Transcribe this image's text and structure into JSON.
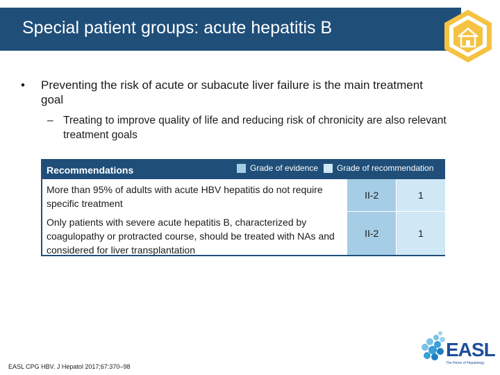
{
  "title": "Special patient groups: acute hepatitis B",
  "bullets": {
    "main_marker": "•",
    "main": "Preventing the risk of acute or subacute liver failure is the main treatment goal",
    "sub_marker": "–",
    "sub": "Treating to improve quality of life and reducing risk of chronicity are also relevant treatment goals"
  },
  "recommendations": {
    "header": "Recommendations",
    "legend": {
      "evidence_label": "Grade of evidence",
      "recommendation_label": "Grade of recommendation"
    },
    "rows": [
      {
        "text": "More than 95% of adults with acute HBV hepatitis do not require specific treatment",
        "evidence": "II-2",
        "recommendation": "1"
      },
      {
        "text": "Only patients with severe acute hepatitis B, characterized by coagulopathy or protracted course, should be treated with NAs and considered for liver transplantation",
        "evidence": "II-2",
        "recommendation": "1"
      }
    ]
  },
  "footer": "EASL CPG HBV. J Hepatol 2017;67:370–98",
  "logo": {
    "text": "EASL",
    "tagline": "The Home of Hepatology"
  },
  "colors": {
    "title_bar": "#1f4e79",
    "evidence": "#a6cde6",
    "recommendation": "#d0e7f5",
    "home_icon": "#f5c242"
  }
}
